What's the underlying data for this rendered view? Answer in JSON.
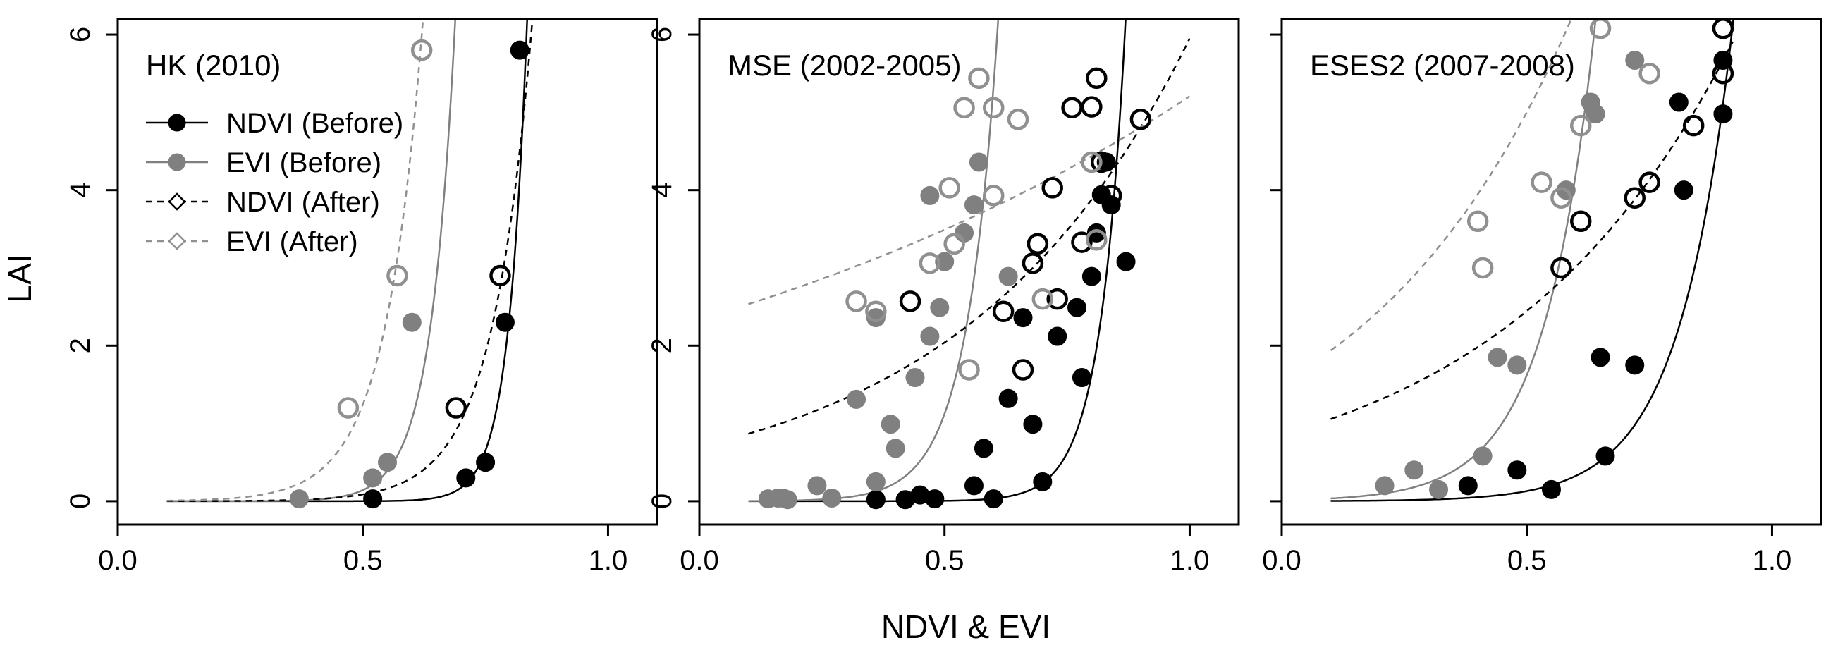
{
  "figure": {
    "xlabel": "NDVI & EVI",
    "ylabel": "LAI"
  },
  "legend": {
    "items": [
      {
        "label": "NDVI (Before)",
        "style": "ndvi_before"
      },
      {
        "label": "EVI (Before)",
        "style": "evi_before"
      },
      {
        "label": "NDVI (After)",
        "style": "ndvi_after"
      },
      {
        "label": "EVI (After)",
        "style": "evi_after"
      }
    ]
  },
  "styles": {
    "ndvi_before": {
      "color": "#000000",
      "fill": "#000000",
      "dash": false
    },
    "evi_before": {
      "color": "#808080",
      "fill": "#808080",
      "dash": false
    },
    "ndvi_after": {
      "color": "#000000",
      "fill": "none",
      "dash": true
    },
    "evi_after": {
      "color": "#909090",
      "fill": "none",
      "dash": true
    }
  },
  "chart_data": [
    {
      "type": "scatter",
      "title": "HK (2010)",
      "xlim": [
        0,
        1.1
      ],
      "ylim": [
        -0.3,
        6.2
      ],
      "xticks": [
        "0.0",
        "0.5",
        "1.0"
      ],
      "yticks": [
        "0",
        "2",
        "4",
        "6"
      ],
      "ytick_values": [
        0,
        2,
        4,
        6
      ],
      "xtick_values": [
        0,
        0.5,
        1.0
      ],
      "series": [
        {
          "name": "NDVI (Before)",
          "style": "ndvi_before",
          "points": [
            [
              0.52,
              0.03
            ],
            [
              0.71,
              0.3
            ],
            [
              0.75,
              0.5
            ],
            [
              0.79,
              2.3
            ],
            [
              0.82,
              5.8
            ]
          ],
          "curve": {
            "a": 1.52e-09,
            "b": 26.5,
            "xmin": 0.1,
            "xmax": 0.95
          }
        },
        {
          "name": "EVI (Before)",
          "style": "evi_before",
          "points": [
            [
              0.37,
              0.03
            ],
            [
              0.52,
              0.3
            ],
            [
              0.55,
              0.5
            ],
            [
              0.6,
              2.3
            ]
          ],
          "curve": {
            "a": 6.5e-06,
            "b": 20.0,
            "xmin": 0.1,
            "xmax": 0.75
          }
        },
        {
          "name": "NDVI (After)",
          "style": "ndvi_after",
          "points": [
            [
              0.69,
              1.2
            ],
            [
              0.78,
              2.9
            ]
          ],
          "curve": {
            "a": 0.000188,
            "b": 12.3,
            "xmin": 0.1,
            "xmax": 0.95
          }
        },
        {
          "name": "EVI (After)",
          "style": "evi_after",
          "points": [
            [
              0.47,
              1.2
            ],
            [
              0.57,
              2.9
            ],
            [
              0.62,
              5.8
            ]
          ],
          "curve": {
            "a": 0.00178,
            "b": 13.1,
            "xmin": 0.1,
            "xmax": 0.75
          }
        }
      ]
    },
    {
      "type": "scatter",
      "title": "MSE (2002-2005)",
      "xlim": [
        0,
        1.1
      ],
      "ylim": [
        -0.3,
        6.2
      ],
      "xticks": [
        "0.0",
        "0.5",
        "1.0"
      ],
      "yticks": [
        "0",
        "2",
        "4",
        "6"
      ],
      "ytick_values": [
        0,
        2,
        4,
        6
      ],
      "xtick_values": [
        0,
        0.5,
        1.0
      ],
      "series": [
        {
          "name": "NDVI (Before)",
          "style": "ndvi_before",
          "points": [
            [
              0.36,
              0.02
            ],
            [
              0.42,
              0.02
            ],
            [
              0.45,
              0.08
            ],
            [
              0.48,
              0.03
            ],
            [
              0.56,
              0.2
            ],
            [
              0.58,
              0.68
            ],
            [
              0.6,
              0.03
            ],
            [
              0.63,
              1.32
            ],
            [
              0.66,
              2.36
            ],
            [
              0.68,
              0.99
            ],
            [
              0.7,
              0.25
            ],
            [
              0.73,
              2.12
            ],
            [
              0.77,
              2.49
            ],
            [
              0.78,
              1.59
            ],
            [
              0.8,
              2.89
            ],
            [
              0.81,
              3.45
            ],
            [
              0.82,
              3.94
            ],
            [
              0.84,
              3.81
            ],
            [
              0.87,
              3.08
            ],
            [
              0.83,
              4.36
            ]
          ],
          "curve": {
            "a": 3.2e-07,
            "b": 19.3,
            "xmin": 0.1,
            "xmax": 0.95
          }
        },
        {
          "name": "EVI (Before)",
          "style": "evi_before",
          "points": [
            [
              0.14,
              0.03
            ],
            [
              0.16,
              0.04
            ],
            [
              0.17,
              0.04
            ],
            [
              0.18,
              0.02
            ],
            [
              0.24,
              0.2
            ],
            [
              0.27,
              0.04
            ],
            [
              0.32,
              1.31
            ],
            [
              0.36,
              2.36
            ],
            [
              0.36,
              0.25
            ],
            [
              0.39,
              0.99
            ],
            [
              0.4,
              0.68
            ],
            [
              0.44,
              1.59
            ],
            [
              0.47,
              2.12
            ],
            [
              0.47,
              3.93
            ],
            [
              0.49,
              2.49
            ],
            [
              0.5,
              3.08
            ],
            [
              0.54,
              3.45
            ],
            [
              0.56,
              3.81
            ],
            [
              0.57,
              4.36
            ],
            [
              0.63,
              2.89
            ]
          ],
          "curve": {
            "a": 0.00046,
            "b": 15.6,
            "xmin": 0.1,
            "xmax": 0.75
          }
        },
        {
          "name": "NDVI (After)",
          "style": "ndvi_after",
          "points": [
            [
              0.43,
              2.57
            ],
            [
              0.62,
              2.44
            ],
            [
              0.66,
              1.69
            ],
            [
              0.68,
              3.06
            ],
            [
              0.69,
              3.31
            ],
            [
              0.72,
              4.03
            ],
            [
              0.73,
              2.6
            ],
            [
              0.76,
              5.06
            ],
            [
              0.78,
              3.33
            ],
            [
              0.8,
              5.07
            ],
            [
              0.81,
              5.44
            ],
            [
              0.82,
              4.36
            ],
            [
              0.84,
              3.93
            ],
            [
              0.9,
              4.91
            ]
          ],
          "curve": {
            "a": 0.7,
            "b": 2.14,
            "xmin": 0.1,
            "xmax": 1.0
          }
        },
        {
          "name": "EVI (After)",
          "style": "evi_after",
          "points": [
            [
              0.32,
              2.57
            ],
            [
              0.36,
              2.44
            ],
            [
              0.47,
              3.06
            ],
            [
              0.51,
              4.03
            ],
            [
              0.52,
              3.31
            ],
            [
              0.54,
              5.06
            ],
            [
              0.55,
              1.69
            ],
            [
              0.57,
              5.44
            ],
            [
              0.6,
              5.06
            ],
            [
              0.6,
              3.93
            ],
            [
              0.65,
              4.91
            ],
            [
              0.7,
              2.6
            ],
            [
              0.8,
              4.36
            ],
            [
              0.81,
              3.36
            ]
          ],
          "curve": {
            "a": 2.34,
            "b": 0.8,
            "xmin": 0.1,
            "xmax": 1.0
          }
        }
      ]
    },
    {
      "type": "scatter",
      "title": "ESES2 (2007-2008)",
      "xlim": [
        0,
        1.1
      ],
      "ylim": [
        -0.3,
        6.2
      ],
      "xticks": [
        "0.0",
        "0.5",
        "1.0"
      ],
      "yticks": [],
      "ytick_values": [
        0,
        2,
        4,
        6
      ],
      "xtick_values": [
        0,
        0.5,
        1.0
      ],
      "series": [
        {
          "name": "NDVI (Before)",
          "style": "ndvi_before",
          "points": [
            [
              0.38,
              0.2
            ],
            [
              0.48,
              0.4
            ],
            [
              0.55,
              0.15
            ],
            [
              0.65,
              1.85
            ],
            [
              0.66,
              0.58
            ],
            [
              0.72,
              1.75
            ],
            [
              0.81,
              5.13
            ],
            [
              0.82,
              4.0
            ],
            [
              0.9,
              5.67
            ],
            [
              0.9,
              4.98
            ]
          ],
          "curve": {
            "a": 0.00133,
            "b": 9.17,
            "xmin": 0.1,
            "xmax": 0.95
          }
        },
        {
          "name": "EVI (Before)",
          "style": "evi_before",
          "points": [
            [
              0.21,
              0.2
            ],
            [
              0.27,
              0.4
            ],
            [
              0.32,
              0.15
            ],
            [
              0.41,
              0.58
            ],
            [
              0.44,
              1.85
            ],
            [
              0.48,
              1.75
            ],
            [
              0.58,
              4.0
            ],
            [
              0.63,
              5.13
            ],
            [
              0.64,
              4.98
            ],
            [
              0.72,
              5.67
            ]
          ],
          "curve": {
            "a": 0.0137,
            "b": 9.55,
            "xmin": 0.1,
            "xmax": 0.75
          }
        },
        {
          "name": "NDVI (After)",
          "style": "ndvi_after",
          "points": [
            [
              0.57,
              3.0
            ],
            [
              0.61,
              3.6
            ],
            [
              0.72,
              3.9
            ],
            [
              0.75,
              4.1
            ],
            [
              0.84,
              4.83
            ],
            [
              0.9,
              5.5
            ],
            [
              0.9,
              6.08
            ]
          ],
          "curve": {
            "a": 0.856,
            "b": 2.1,
            "xmin": 0.1,
            "xmax": 0.92
          }
        },
        {
          "name": "EVI (After)",
          "style": "evi_after",
          "points": [
            [
              0.4,
              3.6
            ],
            [
              0.41,
              3.0
            ],
            [
              0.53,
              4.1
            ],
            [
              0.57,
              3.9
            ],
            [
              0.61,
              4.83
            ],
            [
              0.65,
              6.08
            ],
            [
              0.75,
              5.5
            ]
          ],
          "curve": {
            "a": 1.53,
            "b": 2.37,
            "xmin": 0.1,
            "xmax": 0.75
          }
        }
      ]
    }
  ]
}
